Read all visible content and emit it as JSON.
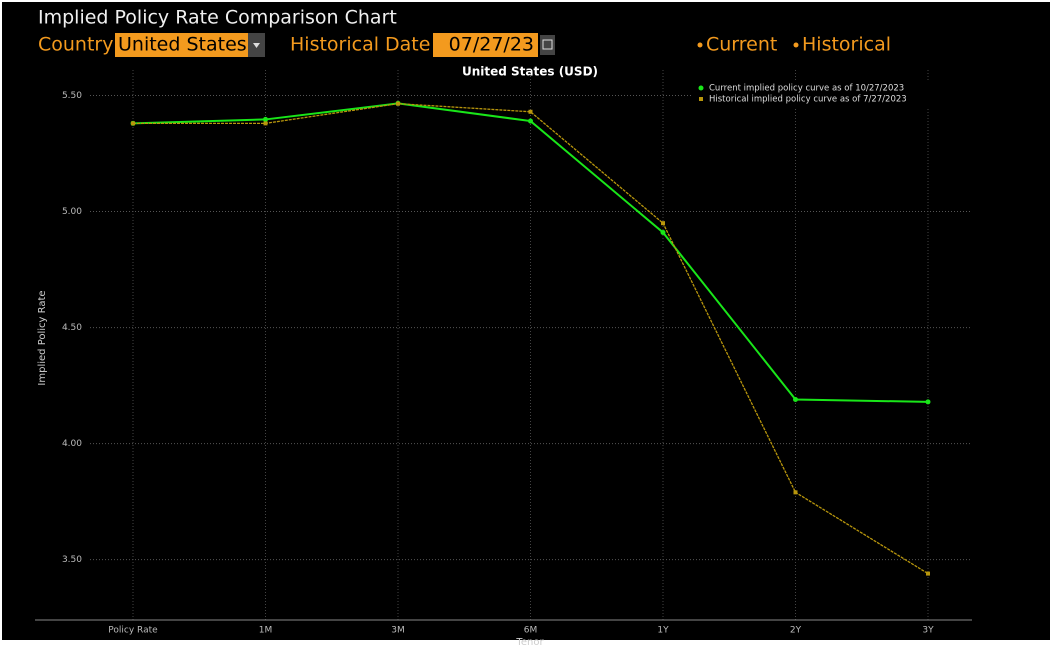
{
  "header": {
    "title": "Implied Policy Rate Comparison Chart",
    "country_label": "Country",
    "country_value": "United States",
    "date_label": "Historical Date",
    "date_value": "07/27/23"
  },
  "chart_data": {
    "type": "line",
    "title": "United States (USD)",
    "x_label": "Tenor",
    "y_label": "Implied Policy Rate",
    "categories": [
      "Policy Rate",
      "1M",
      "3M",
      "6M",
      "1Y",
      "2Y",
      "3Y"
    ],
    "series": [
      {
        "name": "Current",
        "color": "#19e619",
        "values": [
          5.38,
          5.397,
          5.466,
          5.39,
          4.91,
          4.19,
          4.18
        ]
      },
      {
        "name": "Historical",
        "color": "#b8960c",
        "values": [
          5.38,
          5.38,
          5.465,
          5.43,
          4.95,
          3.79,
          3.44
        ]
      }
    ],
    "legend_entries": [
      "Current implied policy curve as of 10/27/2023",
      "Historical implied policy curve as of 7/27/2023"
    ],
    "ylim": [
      3.24,
      5.61
    ],
    "yticks": [
      {
        "value": 3.5,
        "label": "3.50"
      },
      {
        "value": 4,
        "label": "4.00"
      },
      {
        "value": 4.5,
        "label": "4.50"
      },
      {
        "value": 5,
        "label": "5.00"
      },
      {
        "value": 5.5,
        "label": "5.50"
      }
    ],
    "grid": true
  }
}
